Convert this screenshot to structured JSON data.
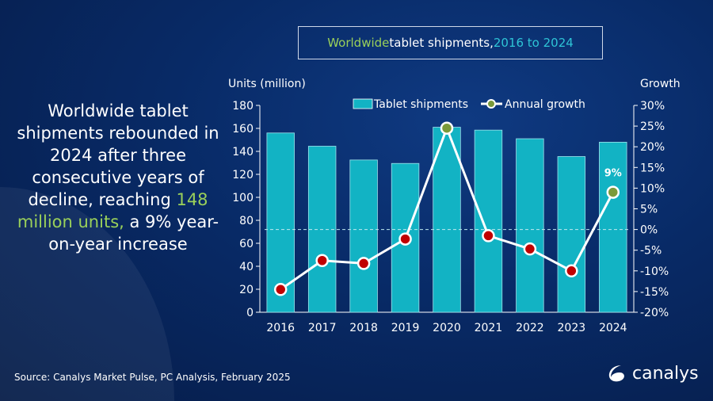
{
  "title": {
    "part1": "Worldwide",
    "part2": " tablet shipments, ",
    "part3": "2016 to 2024"
  },
  "headline": {
    "part1": "Worldwide tablet shipments rebounded in 2024 after three consecutive years of decline, reaching ",
    "highlight": "148 million units,",
    "part2": " a 9% year-on-year increase"
  },
  "source": "Source: Canalys Market Pulse, PC Analysis, February 2025",
  "logo": "canalys",
  "colors": {
    "bar": "#12b3c4",
    "positive": "#7a9a3a",
    "negative": "#c00000",
    "line": "#ffffff"
  },
  "chart_data": {
    "type": "bar+line",
    "categories": [
      "2016",
      "2017",
      "2018",
      "2019",
      "2020",
      "2021",
      "2022",
      "2023",
      "2024"
    ],
    "series": [
      {
        "name": "Tablet shipments",
        "type": "bar",
        "axis": "left",
        "values": [
          156,
          144.5,
          132.5,
          129.5,
          161,
          158.5,
          151,
          135.5,
          148
        ]
      },
      {
        "name": "Annual growth",
        "type": "line",
        "axis": "right",
        "values": [
          -14.5,
          -7.5,
          -8.2,
          -2.3,
          24.5,
          -1.5,
          -4.7,
          -10,
          9
        ]
      }
    ],
    "ylabel": "Units (million)",
    "y2label": "Growth",
    "ylim": [
      0,
      180
    ],
    "yticks": [
      0,
      20,
      40,
      60,
      80,
      100,
      120,
      140,
      160,
      180
    ],
    "y2lim": [
      -20,
      30
    ],
    "y2ticks": [
      "-20%",
      "-15%",
      "-10%",
      "-5%",
      "0%",
      "5%",
      "10%",
      "15%",
      "20%",
      "25%",
      "30%"
    ],
    "annotations": [
      {
        "category": "2024",
        "text": "9%"
      }
    ],
    "legend": "top"
  }
}
